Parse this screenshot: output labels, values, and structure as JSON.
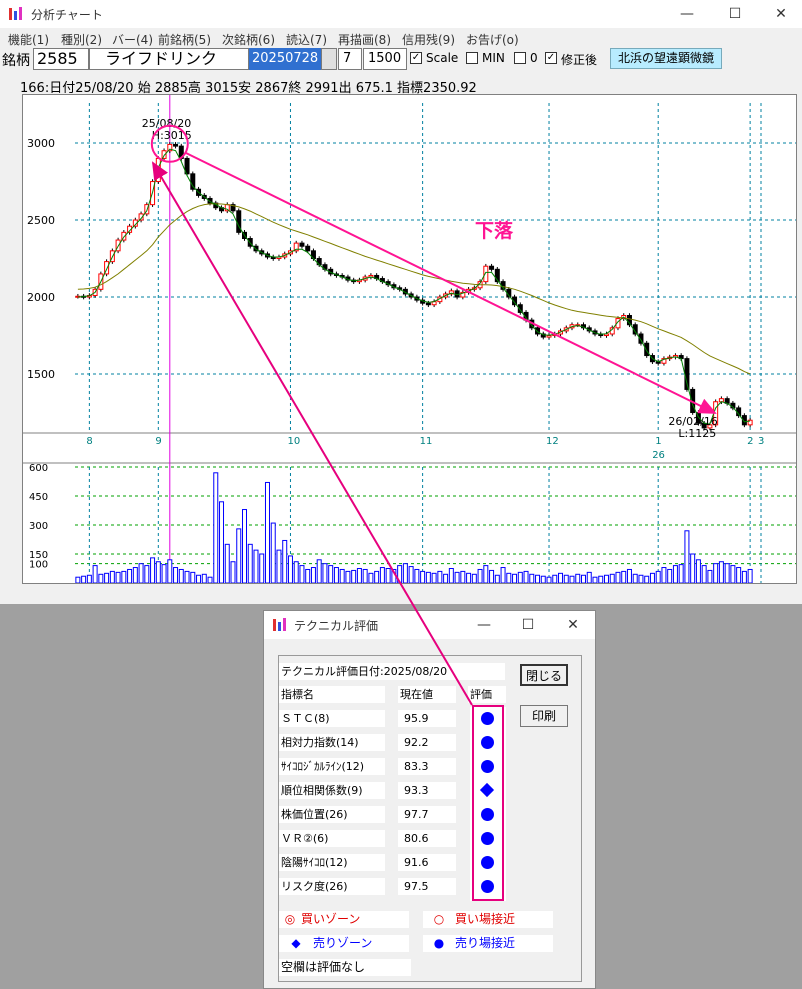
{
  "main_window": {
    "title": "分析チャート",
    "controls": {
      "minimize": "—",
      "maximize": "☐",
      "close": "✕"
    },
    "menu": [
      "機能(1)",
      "種別(2)",
      "バー(4)",
      "前銘柄(5)",
      "次銘柄(6)",
      "読込(7)",
      "再描画(8)",
      "信用残(9)",
      "お告げ(o)"
    ]
  },
  "toolbar": {
    "label": "銘柄",
    "code": "2585",
    "name": "ライフドリンク",
    "date": "20250728",
    "period": "7",
    "count": "1500",
    "scale_label": "Scale",
    "scale_checked": true,
    "min_label": "MIN",
    "min_checked": false,
    "zero_label": "0",
    "zero_checked": false,
    "adjusted_label": "修正後",
    "adjusted_checked": true,
    "telescope_button": "北浜の望遠顕微鏡"
  },
  "info_line": "166:日付25/08/20 始 2885高 3015安 2867終 2991出 675.1 指標2350.92",
  "chart_data": {
    "type": "candlestick",
    "price_axis": {
      "ticks": [
        3000,
        2500,
        2000,
        1500
      ],
      "ylim": [
        1130,
        3260
      ]
    },
    "volume_axis": {
      "ticks": [
        600,
        450,
        300,
        150,
        100
      ],
      "ylim": [
        0,
        600
      ]
    },
    "x_month_labels": [
      "8",
      "9",
      "10",
      "11",
      "12",
      "1",
      "2",
      "3"
    ],
    "year_label": "26",
    "annotations": {
      "peak_date": "25/08/20",
      "peak_value": "H:3015",
      "low_date": "26/02/16",
      "low_value": "L:1125",
      "trend_label": "下落"
    },
    "close_series": [
      2005,
      2000,
      2010,
      2050,
      2150,
      2230,
      2300,
      2370,
      2420,
      2460,
      2500,
      2540,
      2600,
      2750,
      2900,
      2950,
      2991,
      2980,
      2900,
      2800,
      2700,
      2660,
      2640,
      2610,
      2580,
      2560,
      2600,
      2560,
      2420,
      2380,
      2330,
      2300,
      2280,
      2260,
      2250,
      2260,
      2280,
      2300,
      2350,
      2330,
      2300,
      2250,
      2210,
      2180,
      2150,
      2140,
      2130,
      2110,
      2100,
      2110,
      2130,
      2140,
      2120,
      2100,
      2080,
      2060,
      2050,
      2020,
      2000,
      1980,
      1960,
      1950,
      1970,
      2000,
      2020,
      2040,
      2000,
      2030,
      2050,
      2060,
      2100,
      2200,
      2180,
      2100,
      2050,
      2000,
      1950,
      1900,
      1850,
      1800,
      1760,
      1740,
      1750,
      1760,
      1780,
      1800,
      1820,
      1820,
      1800,
      1780,
      1760,
      1750,
      1760,
      1800,
      1860,
      1880,
      1820,
      1760,
      1700,
      1620,
      1580,
      1570,
      1600,
      1610,
      1620,
      1600,
      1400,
      1250,
      1180,
      1150,
      1170,
      1320,
      1340,
      1310,
      1280,
      1230,
      1170,
      1200
    ],
    "ma_short": [
      2000,
      2003,
      2008,
      2030,
      2100,
      2180,
      2260,
      2330,
      2390,
      2430,
      2470,
      2510,
      2560,
      2680,
      2840,
      2920,
      2960,
      2950,
      2880,
      2790,
      2720,
      2680,
      2650,
      2620,
      2600,
      2580,
      2570,
      2540,
      2460,
      2400,
      2350,
      2310,
      2290,
      2270,
      2260,
      2260,
      2270,
      2290,
      2310,
      2310,
      2290,
      2250,
      2210,
      2180,
      2160,
      2145,
      2130,
      2115,
      2105,
      2110,
      2120,
      2130,
      2120,
      2100,
      2085,
      2065,
      2050,
      2030,
      2010,
      1990,
      1975,
      1965,
      1970,
      1990,
      2010,
      2025,
      2015,
      2025,
      2040,
      2055,
      2090,
      2160,
      2160,
      2110,
      2060,
      2010,
      1965,
      1915,
      1865,
      1815,
      1775,
      1755,
      1752,
      1758,
      1772,
      1790,
      1808,
      1815,
      1805,
      1785,
      1768,
      1758,
      1762,
      1790,
      1840,
      1870,
      1830,
      1775,
      1720,
      1650,
      1600,
      1580,
      1595,
      1605,
      1612,
      1600,
      1440,
      1300,
      1220,
      1180,
      1175,
      1280,
      1320,
      1310,
      1285,
      1240,
      1190,
      1195
    ],
    "ma_long": [
      2050,
      2052,
      2056,
      2064,
      2080,
      2100,
      2125,
      2150,
      2180,
      2210,
      2240,
      2270,
      2300,
      2340,
      2390,
      2430,
      2470,
      2500,
      2530,
      2555,
      2575,
      2590,
      2600,
      2605,
      2606,
      2604,
      2600,
      2594,
      2585,
      2572,
      2558,
      2540,
      2522,
      2504,
      2486,
      2470,
      2455,
      2440,
      2428,
      2416,
      2404,
      2390,
      2376,
      2362,
      2348,
      2334,
      2320,
      2306,
      2292,
      2278,
      2264,
      2252,
      2240,
      2228,
      2216,
      2204,
      2192,
      2180,
      2168,
      2156,
      2144,
      2134,
      2126,
      2118,
      2110,
      2102,
      2096,
      2090,
      2086,
      2082,
      2080,
      2080,
      2078,
      2074,
      2068,
      2060,
      2050,
      2038,
      2024,
      2010,
      1994,
      1978,
      1962,
      1948,
      1936,
      1924,
      1914,
      1906,
      1900,
      1894,
      1888,
      1882,
      1876,
      1872,
      1868,
      1864,
      1858,
      1850,
      1840,
      1826,
      1810,
      1794,
      1780,
      1766,
      1752,
      1738,
      1716,
      1692,
      1666,
      1640,
      1618,
      1600,
      1584,
      1568,
      1552,
      1536,
      1516,
      1500
    ],
    "volume": [
      30,
      35,
      40,
      90,
      45,
      50,
      60,
      55,
      60,
      70,
      80,
      100,
      90,
      130,
      110,
      95,
      120,
      80,
      70,
      60,
      55,
      40,
      45,
      30,
      570,
      420,
      200,
      110,
      280,
      380,
      200,
      170,
      150,
      520,
      310,
      170,
      220,
      140,
      110,
      90,
      70,
      80,
      120,
      100,
      90,
      80,
      70,
      60,
      65,
      75,
      70,
      50,
      60,
      80,
      75,
      70,
      90,
      100,
      85,
      70,
      60,
      55,
      50,
      60,
      45,
      75,
      55,
      60,
      50,
      45,
      70,
      90,
      65,
      40,
      80,
      50,
      45,
      55,
      60,
      45,
      40,
      35,
      30,
      40,
      50,
      40,
      35,
      45,
      40,
      55,
      30,
      35,
      40,
      45,
      55,
      60,
      70,
      45,
      40,
      35,
      50,
      60,
      80,
      70,
      90,
      95,
      270,
      150,
      120,
      90,
      65,
      100,
      110,
      100,
      90,
      80,
      60,
      70
    ]
  },
  "tech_window": {
    "title": "テクニカル評価",
    "controls": {
      "minimize": "—",
      "maximize": "☐",
      "close": "✕"
    },
    "eval_date": "テクニカル評価日付:2025/08/20",
    "headers": {
      "name": "指標名",
      "value": "現在値",
      "rating": "評価"
    },
    "rows": [
      {
        "name": "ＳＴＣ(8)",
        "value": "95.9",
        "rating": "sell-near"
      },
      {
        "name": "相対力指数(14)",
        "value": "92.2",
        "rating": "sell-near"
      },
      {
        "name": "ｻｲｺﾛｼﾞｶﾙﾗｲﾝ(12)",
        "value": "83.3",
        "rating": "sell-near"
      },
      {
        "name": "順位相関係数(9)",
        "value": "93.3",
        "rating": "sell-zone"
      },
      {
        "name": "株価位置(26)",
        "value": "97.7",
        "rating": "sell-near"
      },
      {
        "name": "ＶＲ②(6)",
        "value": "80.6",
        "rating": "sell-near"
      },
      {
        "name": "陰陽ｻｲｺﾛ(12)",
        "value": "91.6",
        "rating": "sell-near"
      },
      {
        "name": "リスク度(26)",
        "value": "97.5",
        "rating": "sell-near"
      }
    ],
    "close_button": "閉じる",
    "print_button": "印刷",
    "legend": {
      "buy_zone": "買いゾーン",
      "buy_near": "買い場接近",
      "sell_zone": "売りゾーン",
      "sell_near": "売り場接近",
      "blank": "空欄は評価なし"
    }
  },
  "colors": {
    "up_candle": "#ff0000",
    "down_candle": "#000000",
    "annotation": "#ff1493",
    "grid": "#0080a0",
    "volume": "#0000ff",
    "rating": "#0000ff"
  }
}
